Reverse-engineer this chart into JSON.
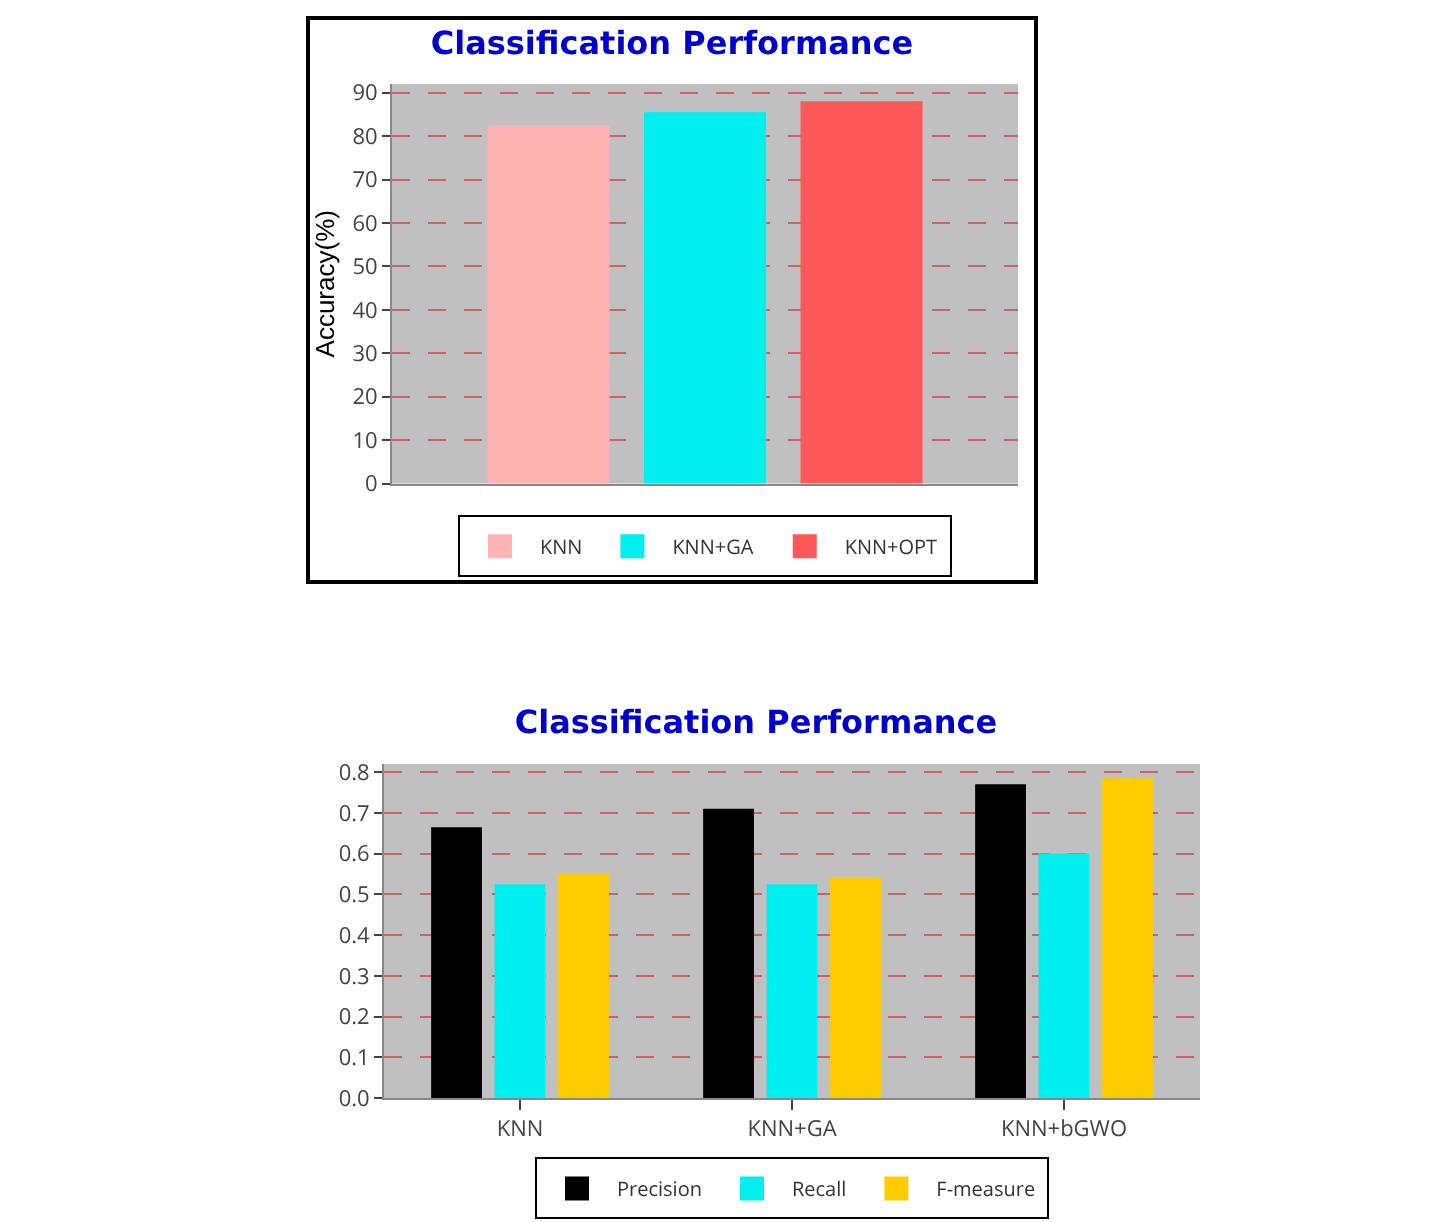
{
  "chart_data": [
    {
      "type": "bar",
      "title": "Classification Performance",
      "ylabel": "Accuracy(%)",
      "categories": [
        null
      ],
      "series": [
        {
          "name": "KNN",
          "color": "#ffb3b3",
          "values": [
            82.5
          ]
        },
        {
          "name": "KNN+GA",
          "color": "#00f0f0",
          "values": [
            85.5
          ]
        },
        {
          "name": "KNN+OPT",
          "color": "#ff5858",
          "values": [
            88
          ]
        }
      ],
      "ylim": [
        0,
        92
      ],
      "yticks": [
        0,
        10,
        20,
        30,
        40,
        50,
        60,
        70,
        80,
        90
      ],
      "grid": "y",
      "legend": "bottom"
    },
    {
      "type": "bar",
      "title": "Classification Performance",
      "categories": [
        "KNN",
        "KNN+GA",
        "KNN+bGWO"
      ],
      "series": [
        {
          "name": "Precision",
          "color": "#000000",
          "values": [
            0.665,
            0.71,
            0.77
          ]
        },
        {
          "name": "Recall",
          "color": "#00f0f0",
          "values": [
            0.525,
            0.525,
            0.6
          ]
        },
        {
          "name": "F-measure",
          "color": "#ffcc00",
          "values": [
            0.55,
            0.54,
            0.785
          ]
        }
      ],
      "ylim": [
        0,
        0.82
      ],
      "yticks": [
        {
          "value": 0,
          "label": "0.0"
        },
        0.1,
        0.2,
        0.3,
        0.4,
        0.5,
        0.6,
        0.7,
        0.8
      ],
      "grid": "y",
      "legend": "bottom"
    }
  ]
}
